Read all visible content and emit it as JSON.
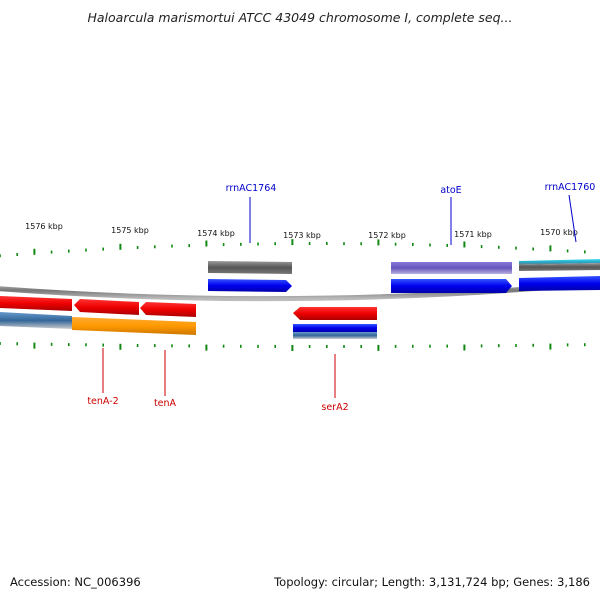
{
  "title": "Haloarcula marismortui ATCC 43049 chromosome I, complete seq...",
  "footer": {
    "accession": "Accession: NC_006396",
    "topology": "Topology: circular; Length: 3,131,724 bp; Genes: 3,186"
  },
  "ticks": [
    "1576 kbp",
    "1575 kbp",
    "1574 kbp",
    "1573 kbp",
    "1572 kbp",
    "1571 kbp",
    "1570 kbp"
  ],
  "labels": {
    "rrnAC1764": "rrnAC1764",
    "atoE": "atoE",
    "rrnAC1760": "rrnAC1760",
    "tenA2": "tenA-2",
    "tenA": "tenA",
    "serA2": "serA2"
  },
  "colors": {
    "backbone": "#808080",
    "blue": "#0000ee",
    "red": "#ee0000",
    "orange": "#ff9900",
    "gray": "#666666",
    "purple": "#7766cc",
    "teal": "#22bbcc",
    "tick": "#118811",
    "label_blue": "#0000cc",
    "label_red": "#cc0000"
  }
}
